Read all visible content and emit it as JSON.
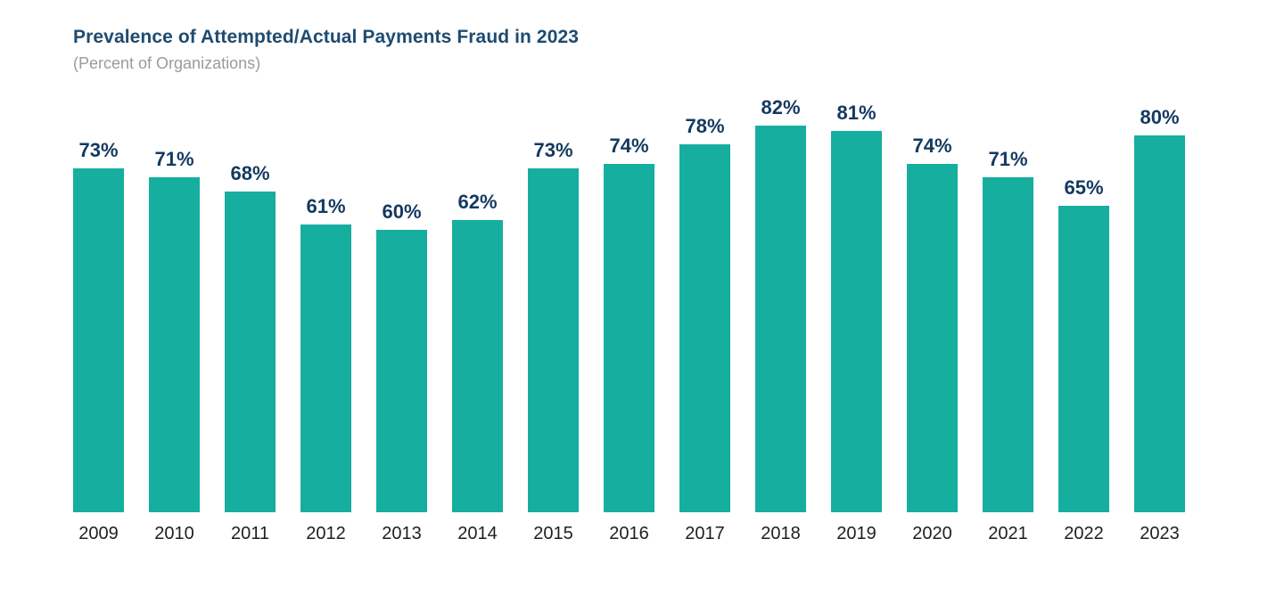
{
  "header": {
    "title": "Prevalence of Attempted/Actual Payments Fraud in 2023",
    "subtitle": "(Percent of Organizations)"
  },
  "chart_data": {
    "type": "bar",
    "title": "Prevalence of Attempted/Actual Payments Fraud in 2023",
    "subtitle": "(Percent of Organizations)",
    "categories": [
      "2009",
      "2010",
      "2011",
      "2012",
      "2013",
      "2014",
      "2015",
      "2016",
      "2017",
      "2018",
      "2019",
      "2020",
      "2021",
      "2022",
      "2023"
    ],
    "values": [
      73,
      71,
      68,
      61,
      60,
      62,
      73,
      74,
      78,
      82,
      81,
      74,
      71,
      65,
      80
    ],
    "value_labels": [
      "73%",
      "71%",
      "68%",
      "61%",
      "60%",
      "62%",
      "73%",
      "74%",
      "78%",
      "82%",
      "81%",
      "74%",
      "71%",
      "65%",
      "80%"
    ],
    "value_suffix": "%",
    "xlabel": "",
    "ylabel": "",
    "ylim": [
      0,
      100
    ],
    "grid": false,
    "legend": false,
    "colors": {
      "bar": "#16AE9F",
      "value_label": "#14395F",
      "axis_label": "#1F1F1F",
      "title": "#1E4B70",
      "subtitle": "#9B9B9B",
      "background": "#FFFFFF"
    }
  }
}
